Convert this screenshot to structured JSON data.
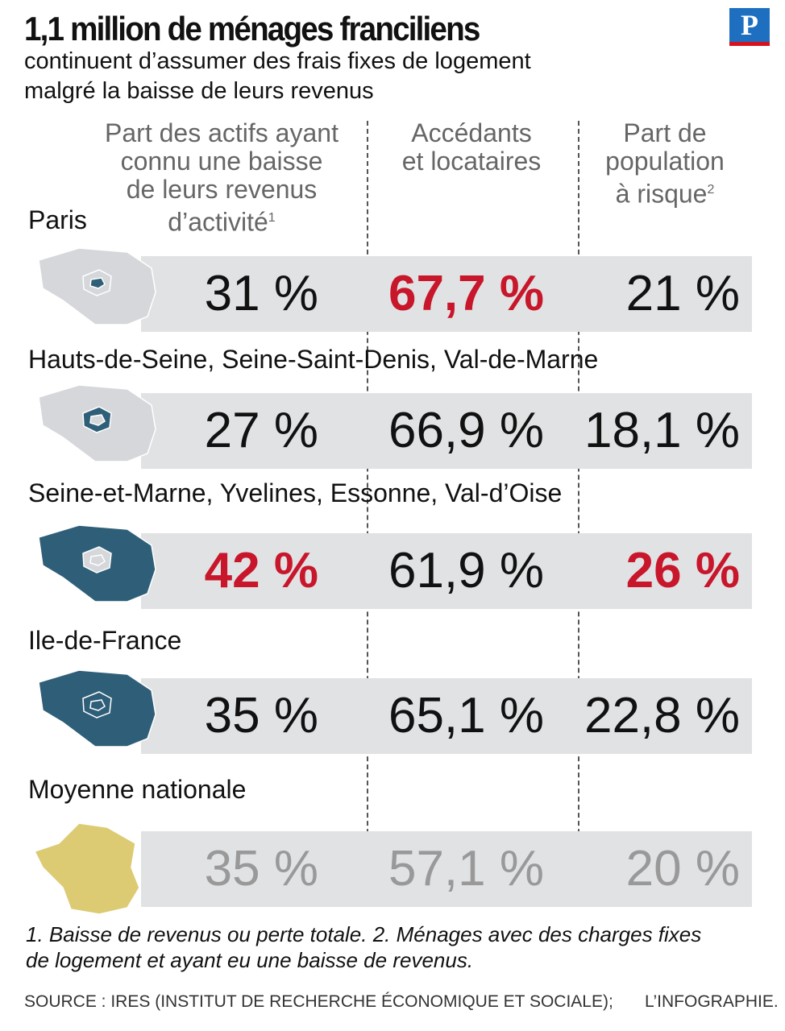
{
  "header": {
    "title": "1,1 million de ménages franciliens",
    "subtitle": [
      "continuent d’assumer des frais fixes de logement",
      "malgré la baisse de leurs revenus"
    ],
    "logo": "P"
  },
  "table": {
    "columns": [
      {
        "lines": [
          "Part des actifs ayant",
          "connu une baisse",
          "de leurs revenus",
          "d’activité"
        ],
        "note": "1"
      },
      {
        "lines": [
          "Accédants",
          "et locataires"
        ]
      },
      {
        "lines": [
          "Part de",
          "population",
          "à risque"
        ],
        "note": "2"
      }
    ],
    "rows": [
      {
        "label": "Paris",
        "cells": [
          "31 %",
          "67,7 %",
          "21 %"
        ],
        "highlight": [
          false,
          true,
          false
        ],
        "muted": false
      },
      {
        "label": "Hauts-de-Seine, Seine-Saint-Denis, Val-de-Marne",
        "cells": [
          "27 %",
          "66,9 %",
          "18,1 %"
        ],
        "highlight": [
          false,
          false,
          false
        ],
        "muted": false
      },
      {
        "label": "Seine-et-Marne, Yvelines, Essonne, Val-d’Oise",
        "cells": [
          "42 %",
          "61,9 %",
          "26 %"
        ],
        "highlight": [
          true,
          false,
          true
        ],
        "muted": false
      },
      {
        "label": "Ile-de-France",
        "cells": [
          "35 %",
          "65,1 %",
          "22,8 %"
        ],
        "highlight": [
          false,
          false,
          false
        ],
        "muted": false
      },
      {
        "label": "Moyenne nationale",
        "cells": [
          "35 %",
          "57,1 %",
          "20 %"
        ],
        "highlight": [
          false,
          false,
          false
        ],
        "muted": true
      }
    ]
  },
  "footer": {
    "notes": [
      "1. Baisse de revenus ou perte totale. 2. Ménages avec des charges fixes",
      "de logement et ayant eu une baisse de revenus."
    ],
    "source": "SOURCE : IRES (INSTITUT DE RECHERCHE ÉCONOMIQUE ET SOCIALE);",
    "credit": "L’INFOGRAPHIE."
  }
}
